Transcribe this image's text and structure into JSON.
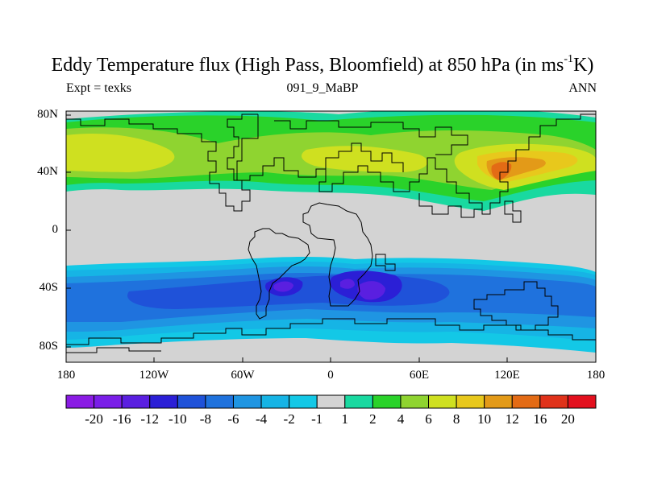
{
  "title_main": "Eddy Temperature flux (High Pass, Bloomfield) at 850 hPa (in ms",
  "title_sup": "-1",
  "title_end": "K)",
  "subtitle_left": "Expt = texks",
  "subtitle_center": "091_9_MaBP",
  "subtitle_right": "ANN",
  "y_ticks": [
    "80N",
    "40N",
    "0",
    "40S",
    "80S"
  ],
  "x_ticks": [
    "180",
    "120W",
    "60W",
    "0",
    "60E",
    "120E",
    "180"
  ],
  "colorbar": {
    "labels": [
      "-20",
      "-16",
      "-12",
      "-10",
      "-8",
      "-6",
      "-4",
      "-2",
      "-1",
      "1",
      "2",
      "4",
      "6",
      "8",
      "10",
      "12",
      "16",
      "20"
    ],
    "colors": [
      "#8a1be4",
      "#7a1ee8",
      "#5a1fe0",
      "#2b1fd6",
      "#1f52d9",
      "#1f72dd",
      "#1f95e2",
      "#16b4e5",
      "#13c8e6",
      "#d3d3d3",
      "#19d9a0",
      "#2ad22a",
      "#8fd430",
      "#cfe020",
      "#e8c81c",
      "#e39a18",
      "#e36b15",
      "#e0321a",
      "#e3101e"
    ]
  },
  "colors": {
    "missing": "#d3d3d3",
    "coast": "#000000"
  }
}
